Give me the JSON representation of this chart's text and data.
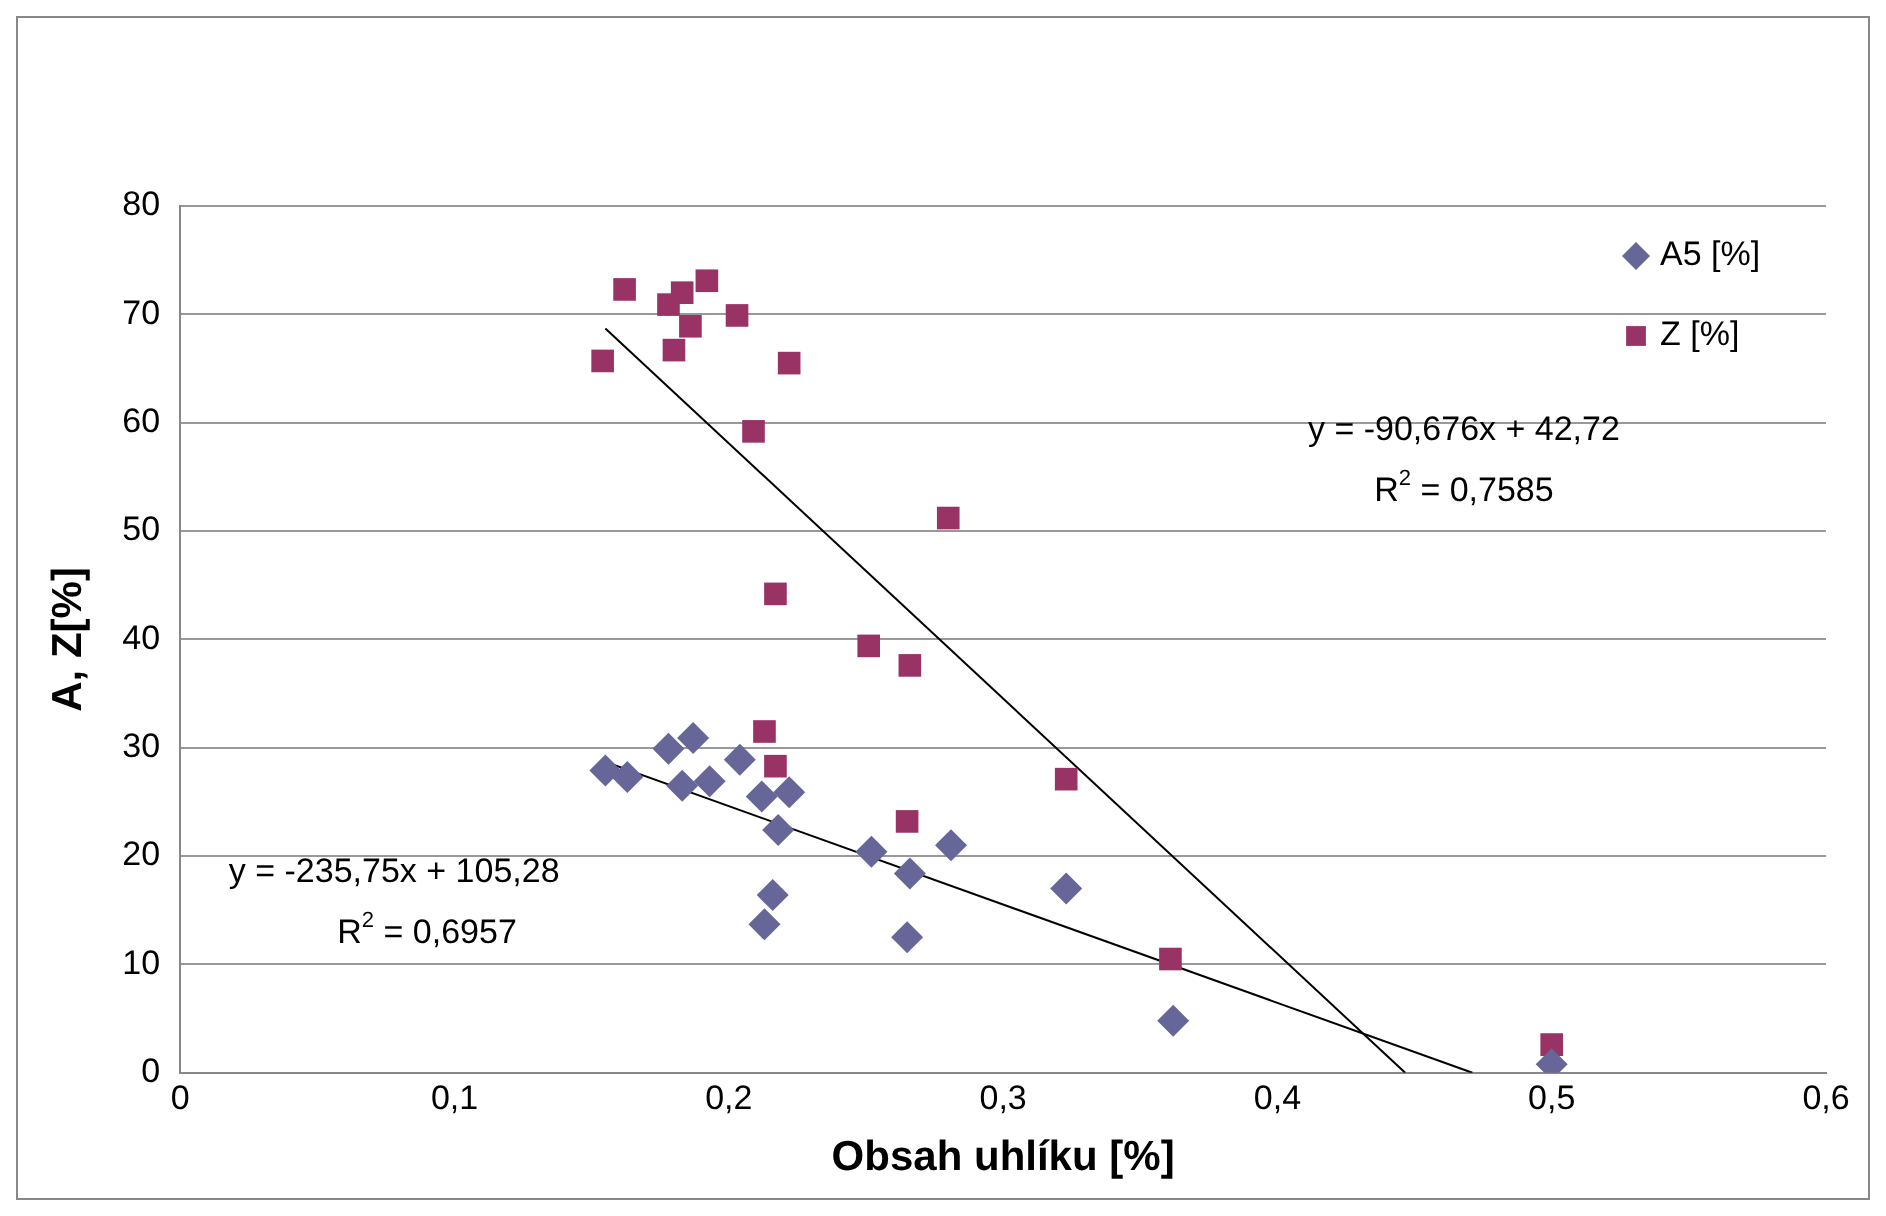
{
  "chart_data": {
    "type": "scatter",
    "xlabel": "Obsah uhlíku [%]",
    "ylabel": "A, Z[%]",
    "xlim": [
      0,
      0.6
    ],
    "ylim": [
      0,
      80
    ],
    "xticks": [
      0,
      {
        "value": 0.1,
        "label": "0,1"
      },
      {
        "value": 0.2,
        "label": "0,2"
      },
      {
        "value": 0.3,
        "label": "0,3"
      },
      {
        "value": 0.4,
        "label": "0,4"
      },
      {
        "value": 0.5,
        "label": "0,5"
      },
      {
        "value": 0.6,
        "label": "0,6"
      }
    ],
    "yticks": [
      0,
      10,
      20,
      30,
      40,
      50,
      60,
      70,
      80
    ],
    "grid": "y",
    "legend": "top right",
    "series": [
      {
        "name": "A5 [%]",
        "color": "#666699",
        "marker": "diamond",
        "x": [
          0.155,
          0.163,
          0.178,
          0.187,
          0.183,
          0.193,
          0.204,
          0.212,
          0.222,
          0.218,
          0.216,
          0.213,
          0.252,
          0.266,
          0.281,
          0.265,
          0.323,
          0.362,
          0.5
        ],
        "values": [
          27.9,
          27.3,
          29.9,
          30.9,
          26.5,
          26.9,
          28.9,
          25.5,
          25.9,
          22.4,
          16.4,
          13.7,
          20.4,
          18.4,
          21.0,
          12.5,
          17.0,
          4.8,
          0.8
        ]
      },
      {
        "name": "Z [%]",
        "color": "#993366",
        "marker": "square",
        "x": [
          0.162,
          0.154,
          0.183,
          0.192,
          0.178,
          0.186,
          0.18,
          0.203,
          0.222,
          0.209,
          0.217,
          0.213,
          0.217,
          0.28,
          0.251,
          0.266,
          0.265,
          0.323,
          0.361,
          0.5
        ],
        "values": [
          72.3,
          65.7,
          72.0,
          73.1,
          70.9,
          68.9,
          66.7,
          69.9,
          65.5,
          59.2,
          44.2,
          31.5,
          28.3,
          51.2,
          39.4,
          37.6,
          23.2,
          27.1,
          10.5,
          2.6
        ]
      },
      {
        "type": "line",
        "color": "#000000",
        "marker": "none",
        "x": [
          0.155,
          0.4466
        ],
        "values": [
          68.7,
          0
        ]
      },
      {
        "type": "line",
        "color": "#000000",
        "marker": "none",
        "x": [
          0.155,
          0.4711
        ],
        "values": [
          28.7,
          0
        ]
      }
    ],
    "annotations": [
      "y = -90,676x + 42,72",
      "R$^{2}$ = 0,7585",
      "y = -235,75x + 105,28",
      "R$^{2}$ = 0,6957"
    ]
  }
}
